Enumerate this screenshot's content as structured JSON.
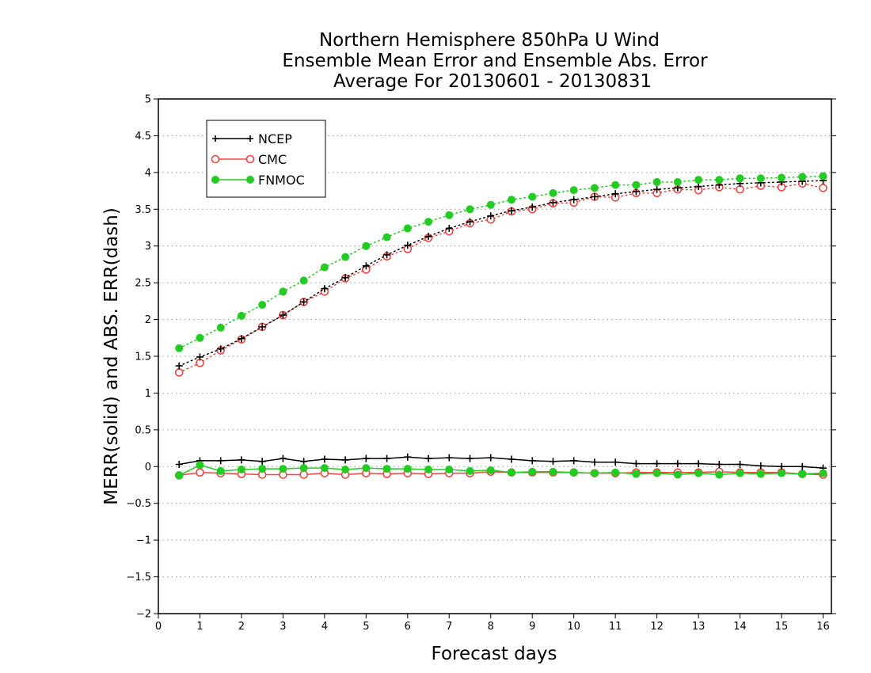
{
  "chart_data": {
    "type": "line",
    "title_lines": [
      "Northern Hemisphere 850hPa U Wind",
      "Ensemble Mean Error and Ensemble Abs. Error",
      "Average For 20130601 - 20130831"
    ],
    "xlabel": "Forecast days",
    "ylabel": "MERR(solid) and ABS. ERR(dash)",
    "xlim": [
      0,
      16.2
    ],
    "ylim": [
      -2,
      5
    ],
    "x_ticks": [
      0,
      1,
      2,
      3,
      4,
      5,
      6,
      7,
      8,
      9,
      10,
      11,
      12,
      13,
      14,
      15,
      16
    ],
    "y_ticks": [
      -2,
      -1.5,
      -1,
      -0.5,
      0,
      0.5,
      1,
      1.5,
      2,
      2.5,
      3,
      3.5,
      4,
      4.5,
      5
    ],
    "x_tick_labels": [
      "0",
      "1",
      "2",
      "3",
      "4",
      "5",
      "6",
      "7",
      "8",
      "9",
      "10",
      "11",
      "12",
      "13",
      "14",
      "15",
      "16"
    ],
    "y_tick_labels": [
      "−2",
      "−1.5",
      "−1",
      "−0.5",
      "0",
      "0.5",
      "1",
      "1.5",
      "2",
      "2.5",
      "3",
      "3.5",
      "4",
      "4.5",
      "5"
    ],
    "grid": "horizontal dotted",
    "legend_position": "top-left",
    "x": [
      0.5,
      1,
      1.5,
      2,
      2.5,
      3,
      3.5,
      4,
      4.5,
      5,
      5.5,
      6,
      6.5,
      7,
      7.5,
      8,
      8.5,
      9,
      9.5,
      10,
      10.5,
      11,
      11.5,
      12,
      12.5,
      13,
      13.5,
      14,
      14.5,
      15,
      15.5,
      16
    ],
    "series": [
      {
        "name": "NCEP",
        "color": "#000000",
        "marker": "plus",
        "abs_error": [
          1.37,
          1.49,
          1.6,
          1.74,
          1.9,
          2.06,
          2.24,
          2.42,
          2.57,
          2.73,
          2.88,
          3.01,
          3.13,
          3.24,
          3.33,
          3.41,
          3.48,
          3.53,
          3.59,
          3.63,
          3.67,
          3.71,
          3.74,
          3.77,
          3.79,
          3.81,
          3.83,
          3.85,
          3.86,
          3.87,
          3.88,
          3.89
        ],
        "mean_error": [
          0.03,
          0.08,
          0.08,
          0.09,
          0.07,
          0.11,
          0.07,
          0.1,
          0.09,
          0.11,
          0.11,
          0.13,
          0.11,
          0.12,
          0.11,
          0.12,
          0.1,
          0.08,
          0.07,
          0.08,
          0.06,
          0.06,
          0.04,
          0.04,
          0.04,
          0.04,
          0.03,
          0.03,
          0.01,
          0.0,
          0.0,
          -0.02
        ]
      },
      {
        "name": "CMC",
        "color": "#ee4444",
        "marker": "open-circle",
        "abs_error": [
          1.28,
          1.41,
          1.58,
          1.73,
          1.9,
          2.06,
          2.24,
          2.38,
          2.56,
          2.68,
          2.86,
          2.96,
          3.11,
          3.2,
          3.31,
          3.36,
          3.47,
          3.5,
          3.58,
          3.59,
          3.67,
          3.66,
          3.72,
          3.72,
          3.77,
          3.76,
          3.8,
          3.77,
          3.82,
          3.8,
          3.85,
          3.79
        ],
        "mean_error": [
          -0.12,
          -0.08,
          -0.09,
          -0.1,
          -0.11,
          -0.11,
          -0.11,
          -0.09,
          -0.11,
          -0.09,
          -0.1,
          -0.09,
          -0.1,
          -0.09,
          -0.09,
          -0.07,
          -0.08,
          -0.08,
          -0.08,
          -0.08,
          -0.09,
          -0.09,
          -0.08,
          -0.08,
          -0.08,
          -0.08,
          -0.07,
          -0.08,
          -0.08,
          -0.08,
          -0.1,
          -0.11
        ]
      },
      {
        "name": "FNMOC",
        "color": "#22cc22",
        "marker": "filled-circle",
        "abs_error": [
          1.61,
          1.75,
          1.89,
          2.05,
          2.2,
          2.38,
          2.53,
          2.71,
          2.85,
          3.0,
          3.12,
          3.24,
          3.33,
          3.42,
          3.5,
          3.56,
          3.63,
          3.67,
          3.72,
          3.76,
          3.79,
          3.83,
          3.83,
          3.87,
          3.87,
          3.9,
          3.9,
          3.92,
          3.92,
          3.93,
          3.94,
          3.95
        ],
        "mean_error": [
          -0.12,
          0.02,
          -0.06,
          -0.04,
          -0.03,
          -0.03,
          -0.02,
          -0.02,
          -0.04,
          -0.02,
          -0.03,
          -0.03,
          -0.04,
          -0.04,
          -0.06,
          -0.05,
          -0.08,
          -0.07,
          -0.07,
          -0.08,
          -0.09,
          -0.08,
          -0.1,
          -0.09,
          -0.11,
          -0.09,
          -0.11,
          -0.09,
          -0.1,
          -0.09,
          -0.1,
          -0.09
        ]
      }
    ]
  }
}
